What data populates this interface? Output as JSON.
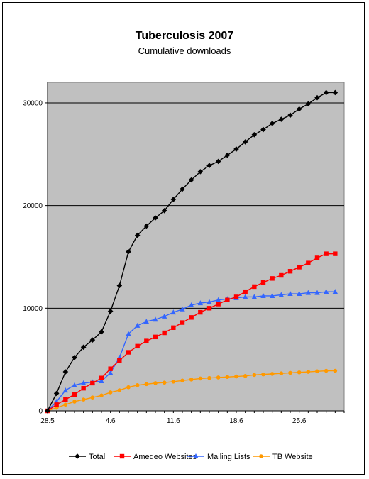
{
  "chart_data": {
    "type": "line",
    "title": "Tuberculosis 2007",
    "subtitle": "Cumulative downloads",
    "xlabel": "",
    "ylabel": "",
    "x_tick_labels": [
      "28.5",
      "4.6",
      "11.6",
      "18.6",
      "25.6"
    ],
    "ylim": [
      0,
      32000
    ],
    "y_ticks": [
      0,
      10000,
      20000,
      30000
    ],
    "grid": "horizontal",
    "legend_position": "bottom",
    "x": [
      0,
      1,
      2,
      3,
      4,
      5,
      6,
      7,
      8,
      9,
      10,
      11,
      12,
      13,
      14,
      15,
      16,
      17,
      18,
      19,
      20,
      21,
      22,
      23,
      24,
      25,
      26,
      27,
      28,
      29,
      30,
      31,
      32
    ],
    "series": [
      {
        "name": "Total",
        "color": "#000000",
        "marker": "diamond",
        "values": [
          0,
          1700,
          3800,
          5200,
          6200,
          6900,
          7700,
          9700,
          12200,
          15500,
          17100,
          18000,
          18800,
          19500,
          20600,
          21600,
          22500,
          23300,
          23900,
          24300,
          24900,
          25500,
          26200,
          26900,
          27400,
          28000,
          28400,
          28800,
          29400,
          29900,
          30500,
          31000,
          31000
        ]
      },
      {
        "name": "Amedeo Websites",
        "color": "#ff0000",
        "marker": "square",
        "values": [
          0,
          600,
          1100,
          1600,
          2200,
          2700,
          3200,
          4100,
          4900,
          5700,
          6300,
          6800,
          7200,
          7600,
          8100,
          8600,
          9100,
          9600,
          10000,
          10400,
          10800,
          11100,
          11600,
          12100,
          12500,
          12900,
          13200,
          13600,
          14000,
          14400,
          14900,
          15300,
          15300
        ]
      },
      {
        "name": "Mailing Lists",
        "color": "#3366ff",
        "marker": "triangle",
        "values": [
          0,
          900,
          2000,
          2500,
          2700,
          2800,
          2900,
          3700,
          5200,
          7500,
          8300,
          8700,
          8900,
          9200,
          9600,
          9900,
          10300,
          10500,
          10600,
          10800,
          10900,
          11000,
          11100,
          11100,
          11200,
          11200,
          11300,
          11400,
          11400,
          11500,
          11500,
          11600,
          11600
        ]
      },
      {
        "name": "TB Website",
        "color": "#ff9900",
        "marker": "circle",
        "values": [
          0,
          300,
          600,
          900,
          1100,
          1300,
          1500,
          1800,
          2000,
          2300,
          2500,
          2600,
          2700,
          2750,
          2850,
          2950,
          3050,
          3150,
          3200,
          3250,
          3300,
          3350,
          3400,
          3500,
          3550,
          3600,
          3650,
          3700,
          3750,
          3800,
          3850,
          3900,
          3900
        ]
      }
    ]
  }
}
